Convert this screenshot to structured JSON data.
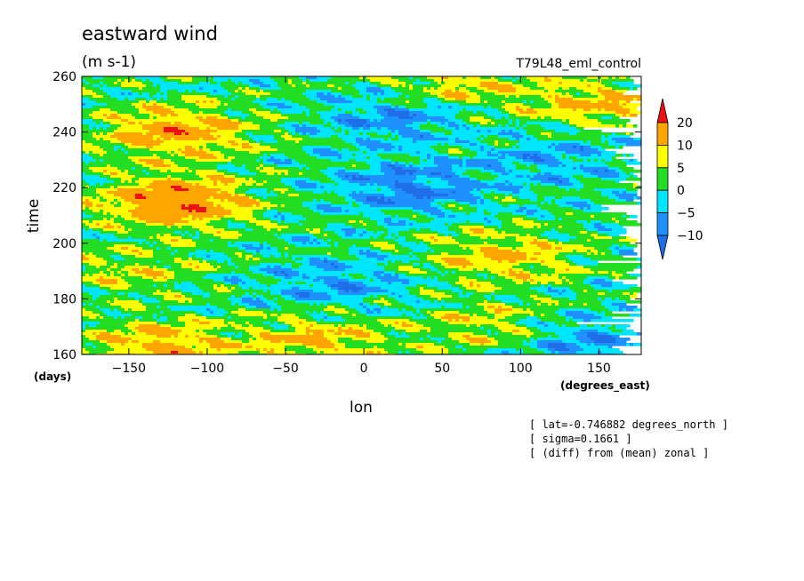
{
  "chart_data": {
    "type": "heatmap",
    "title": "eastward wind",
    "units": "(m s-1)",
    "run_label": "T79L48_eml_control",
    "xlabel": "lon",
    "ylabel": "time",
    "x_unit_label": "(degrees_east)",
    "y_unit_label": "(days)",
    "xlim": [
      -180,
      177
    ],
    "ylim": [
      160,
      260
    ],
    "xticks": [
      -150,
      -100,
      -50,
      0,
      50,
      100,
      150
    ],
    "yticks": [
      160,
      180,
      200,
      220,
      240,
      260
    ],
    "colorbar": {
      "levels": [
        -10,
        -5,
        0,
        5,
        10,
        20
      ],
      "labels": [
        "20",
        "10",
        "5",
        "0",
        "-5",
        "-10"
      ],
      "colors": {
        "below_-10": "#1f6ee8",
        "-10_-5": "#1e90ff",
        "-5_0": "#00e5ff",
        "0_5": "#22dd22",
        "5_10": "#ffff00",
        "10_20": "#ffa500",
        "above_20": "#ee1111"
      }
    },
    "field": {
      "description_level": "approximate feature centers (lon, time, value in m s-1)",
      "features": [
        {
          "lon": -120,
          "time": 240,
          "value": 14
        },
        {
          "lon": -120,
          "time": 215,
          "value": 18
        },
        {
          "lon": -150,
          "time": 190,
          "value": 6
        },
        {
          "lon": -30,
          "time": 165,
          "value": 10
        },
        {
          "lon": -130,
          "time": 163,
          "value": 12
        },
        {
          "lon": 90,
          "time": 195,
          "value": 10
        },
        {
          "lon": 80,
          "time": 170,
          "value": 7
        },
        {
          "lon": 150,
          "time": 250,
          "value": 10
        },
        {
          "lon": 60,
          "time": 257,
          "value": 8
        },
        {
          "lon": 30,
          "time": 220,
          "value": -10
        },
        {
          "lon": 20,
          "time": 245,
          "value": -8
        },
        {
          "lon": -20,
          "time": 185,
          "value": -7
        },
        {
          "lon": 140,
          "time": 165,
          "value": -8
        },
        {
          "lon": 120,
          "time": 230,
          "value": -6
        }
      ]
    },
    "annotations": [
      "[ lat=-0.746882 degrees_north ]",
      "[ sigma=0.1661 ]",
      "[ (diff) from (mean) zonal ]"
    ]
  }
}
